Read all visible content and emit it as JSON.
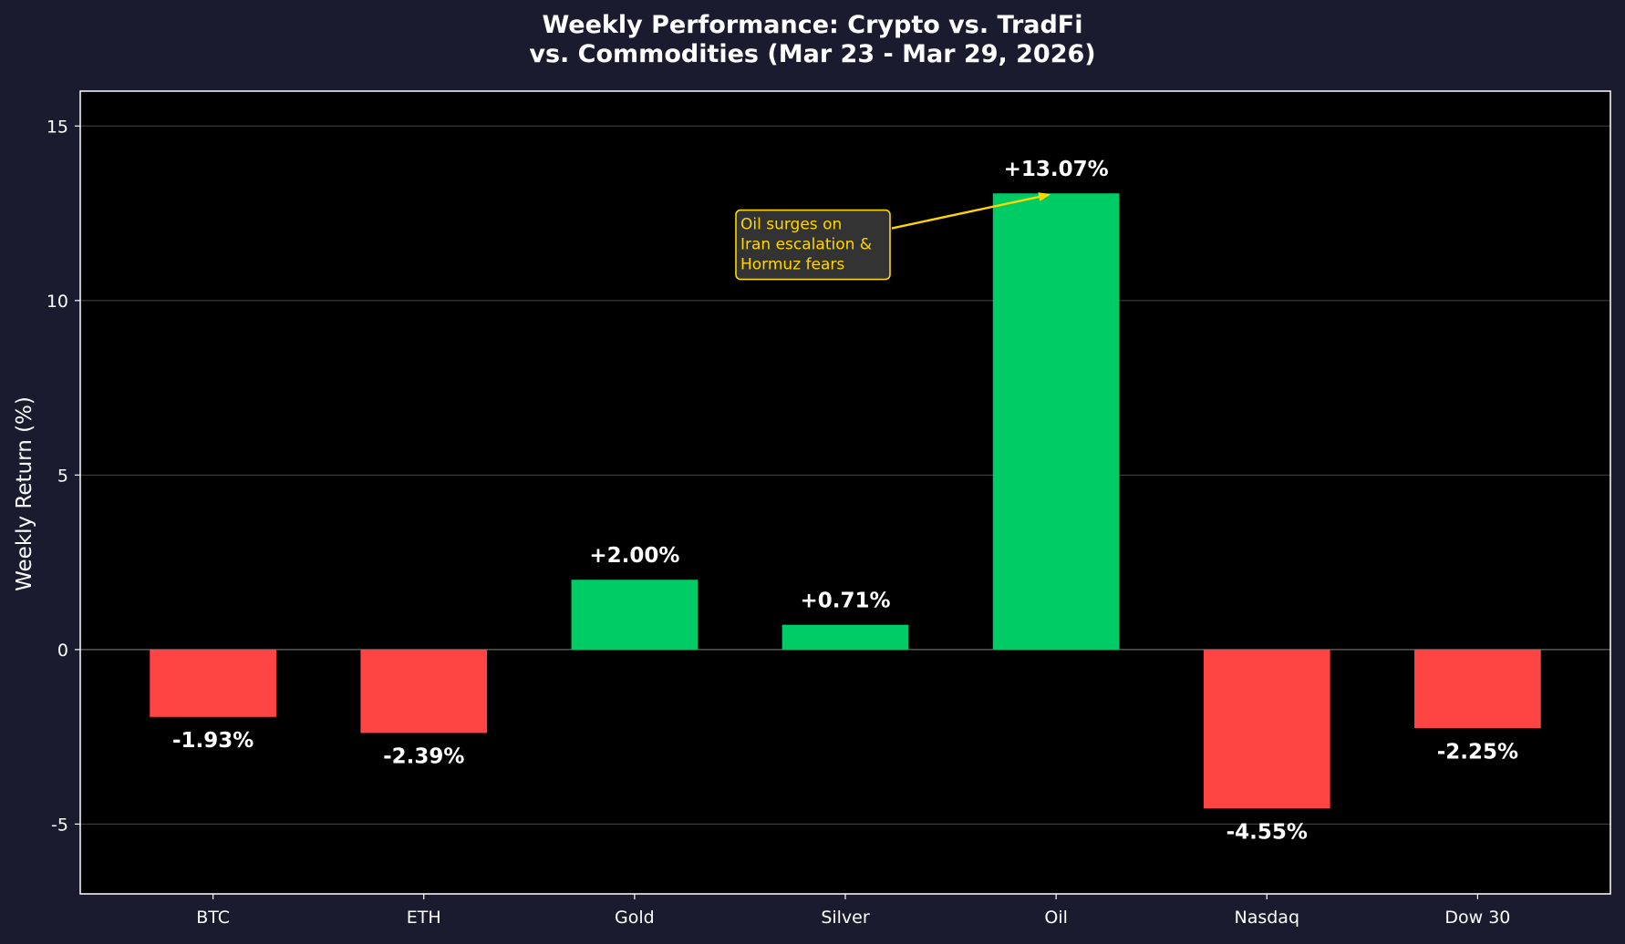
{
  "chart_data": {
    "type": "bar",
    "title_lines": [
      "Weekly Performance: Crypto vs. TradFi",
      "vs. Commodities (Mar 23 - Mar 29, 2026)"
    ],
    "xlabel": "",
    "ylabel": "Weekly Return (%)",
    "categories": [
      "BTC",
      "ETH",
      "Gold",
      "Silver",
      "Oil",
      "Nasdaq",
      "Dow 30"
    ],
    "values": [
      -1.93,
      -2.39,
      2.0,
      0.71,
      13.07,
      -4.55,
      -2.25
    ],
    "value_labels": [
      "-1.93%",
      "-2.39%",
      "+2.00%",
      "+0.71%",
      "+13.07%",
      "-4.55%",
      "-2.25%"
    ],
    "ylim": [
      -7,
      16
    ],
    "yticks": [
      -5,
      0,
      5,
      10,
      15
    ],
    "ytick_labels": [
      "-5",
      "0",
      "5",
      "10",
      "15"
    ],
    "grid": true,
    "annotation": {
      "lines": [
        "Oil surges on",
        "Iran escalation &",
        "Hormuz fears"
      ],
      "target_category": "Oil",
      "target_value": 13.07,
      "text_value": 11.6,
      "color": "#ffd700"
    },
    "colors": {
      "positive": "#00cc66",
      "negative": "#ff4444",
      "figure_background": "#1b1b2f",
      "plot_background": "#000000",
      "text": "#ffffff",
      "grid": "#444444",
      "annotation_box": "#333333"
    }
  }
}
